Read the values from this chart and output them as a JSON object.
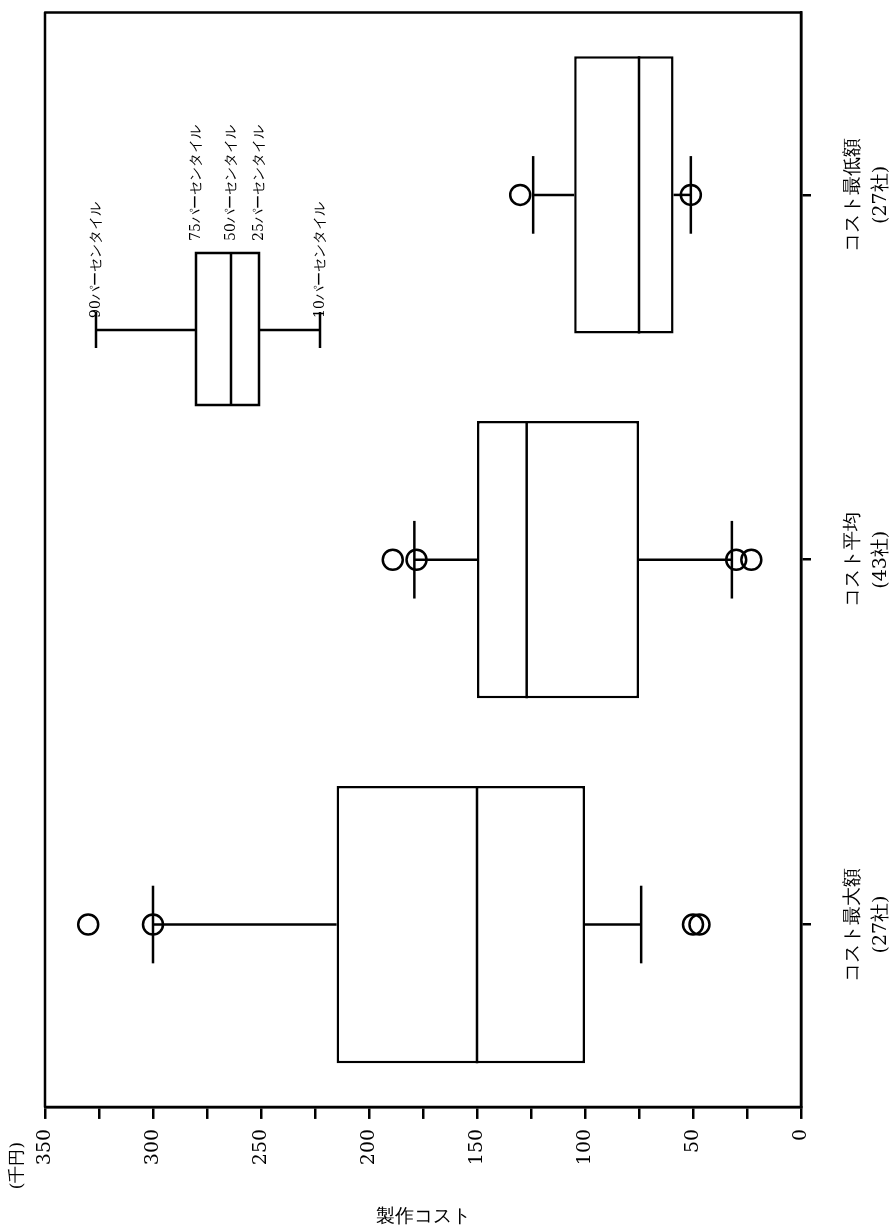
{
  "chart_data": {
    "type": "box",
    "orientation": "horizontal",
    "xlabel": "製作コスト",
    "categories": [
      "コスト最低額\n(27社)",
      "コスト平均\n(43社)",
      "コスト最大額\n(27社)"
    ],
    "boxes": [
      {
        "low": 51,
        "q1": 59,
        "median": 75,
        "q3": 105,
        "high": 124,
        "outliers": [
          130,
          51
        ]
      },
      {
        "low": 32,
        "q1": 75,
        "median": 127,
        "q3": 150,
        "high": 179,
        "outliers": [
          189,
          178,
          30,
          23
        ]
      },
      {
        "low": 74,
        "q1": 100,
        "median": 150,
        "q3": 215,
        "high": 300,
        "outliers": [
          330,
          300,
          50,
          47
        ]
      }
    ],
    "xlim": [
      350,
      0
    ],
    "xticks": [
      0,
      {
        "value": 25,
        "label": null
      },
      50,
      {
        "value": 75,
        "label": null
      },
      100,
      {
        "value": 125,
        "label": null
      },
      150,
      {
        "value": 175,
        "label": null
      },
      200,
      {
        "value": 225,
        "label": null
      },
      250,
      {
        "value": 275,
        "label": null
      },
      300,
      {
        "value": 325,
        "label": null
      },
      350
    ],
    "grid": false,
    "marker": "circle",
    "annotations": [
      "(千円)",
      "90パーセンタイル",
      "75パーセンタイル",
      "50パーセンタイル",
      "25パーセンタイル",
      "10パーセンタイル"
    ]
  }
}
